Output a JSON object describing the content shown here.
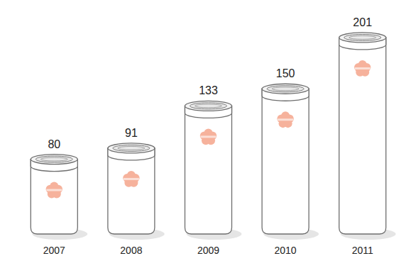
{
  "chart_data": {
    "type": "bar",
    "categories": [
      "2007",
      "2008",
      "2009",
      "2010",
      "2011"
    ],
    "values": [
      80,
      91,
      133,
      150,
      201
    ],
    "color": "#ffffff",
    "ylim": [
      0,
      220
    ],
    "tick_labels": false,
    "data_labels": true
  }
}
